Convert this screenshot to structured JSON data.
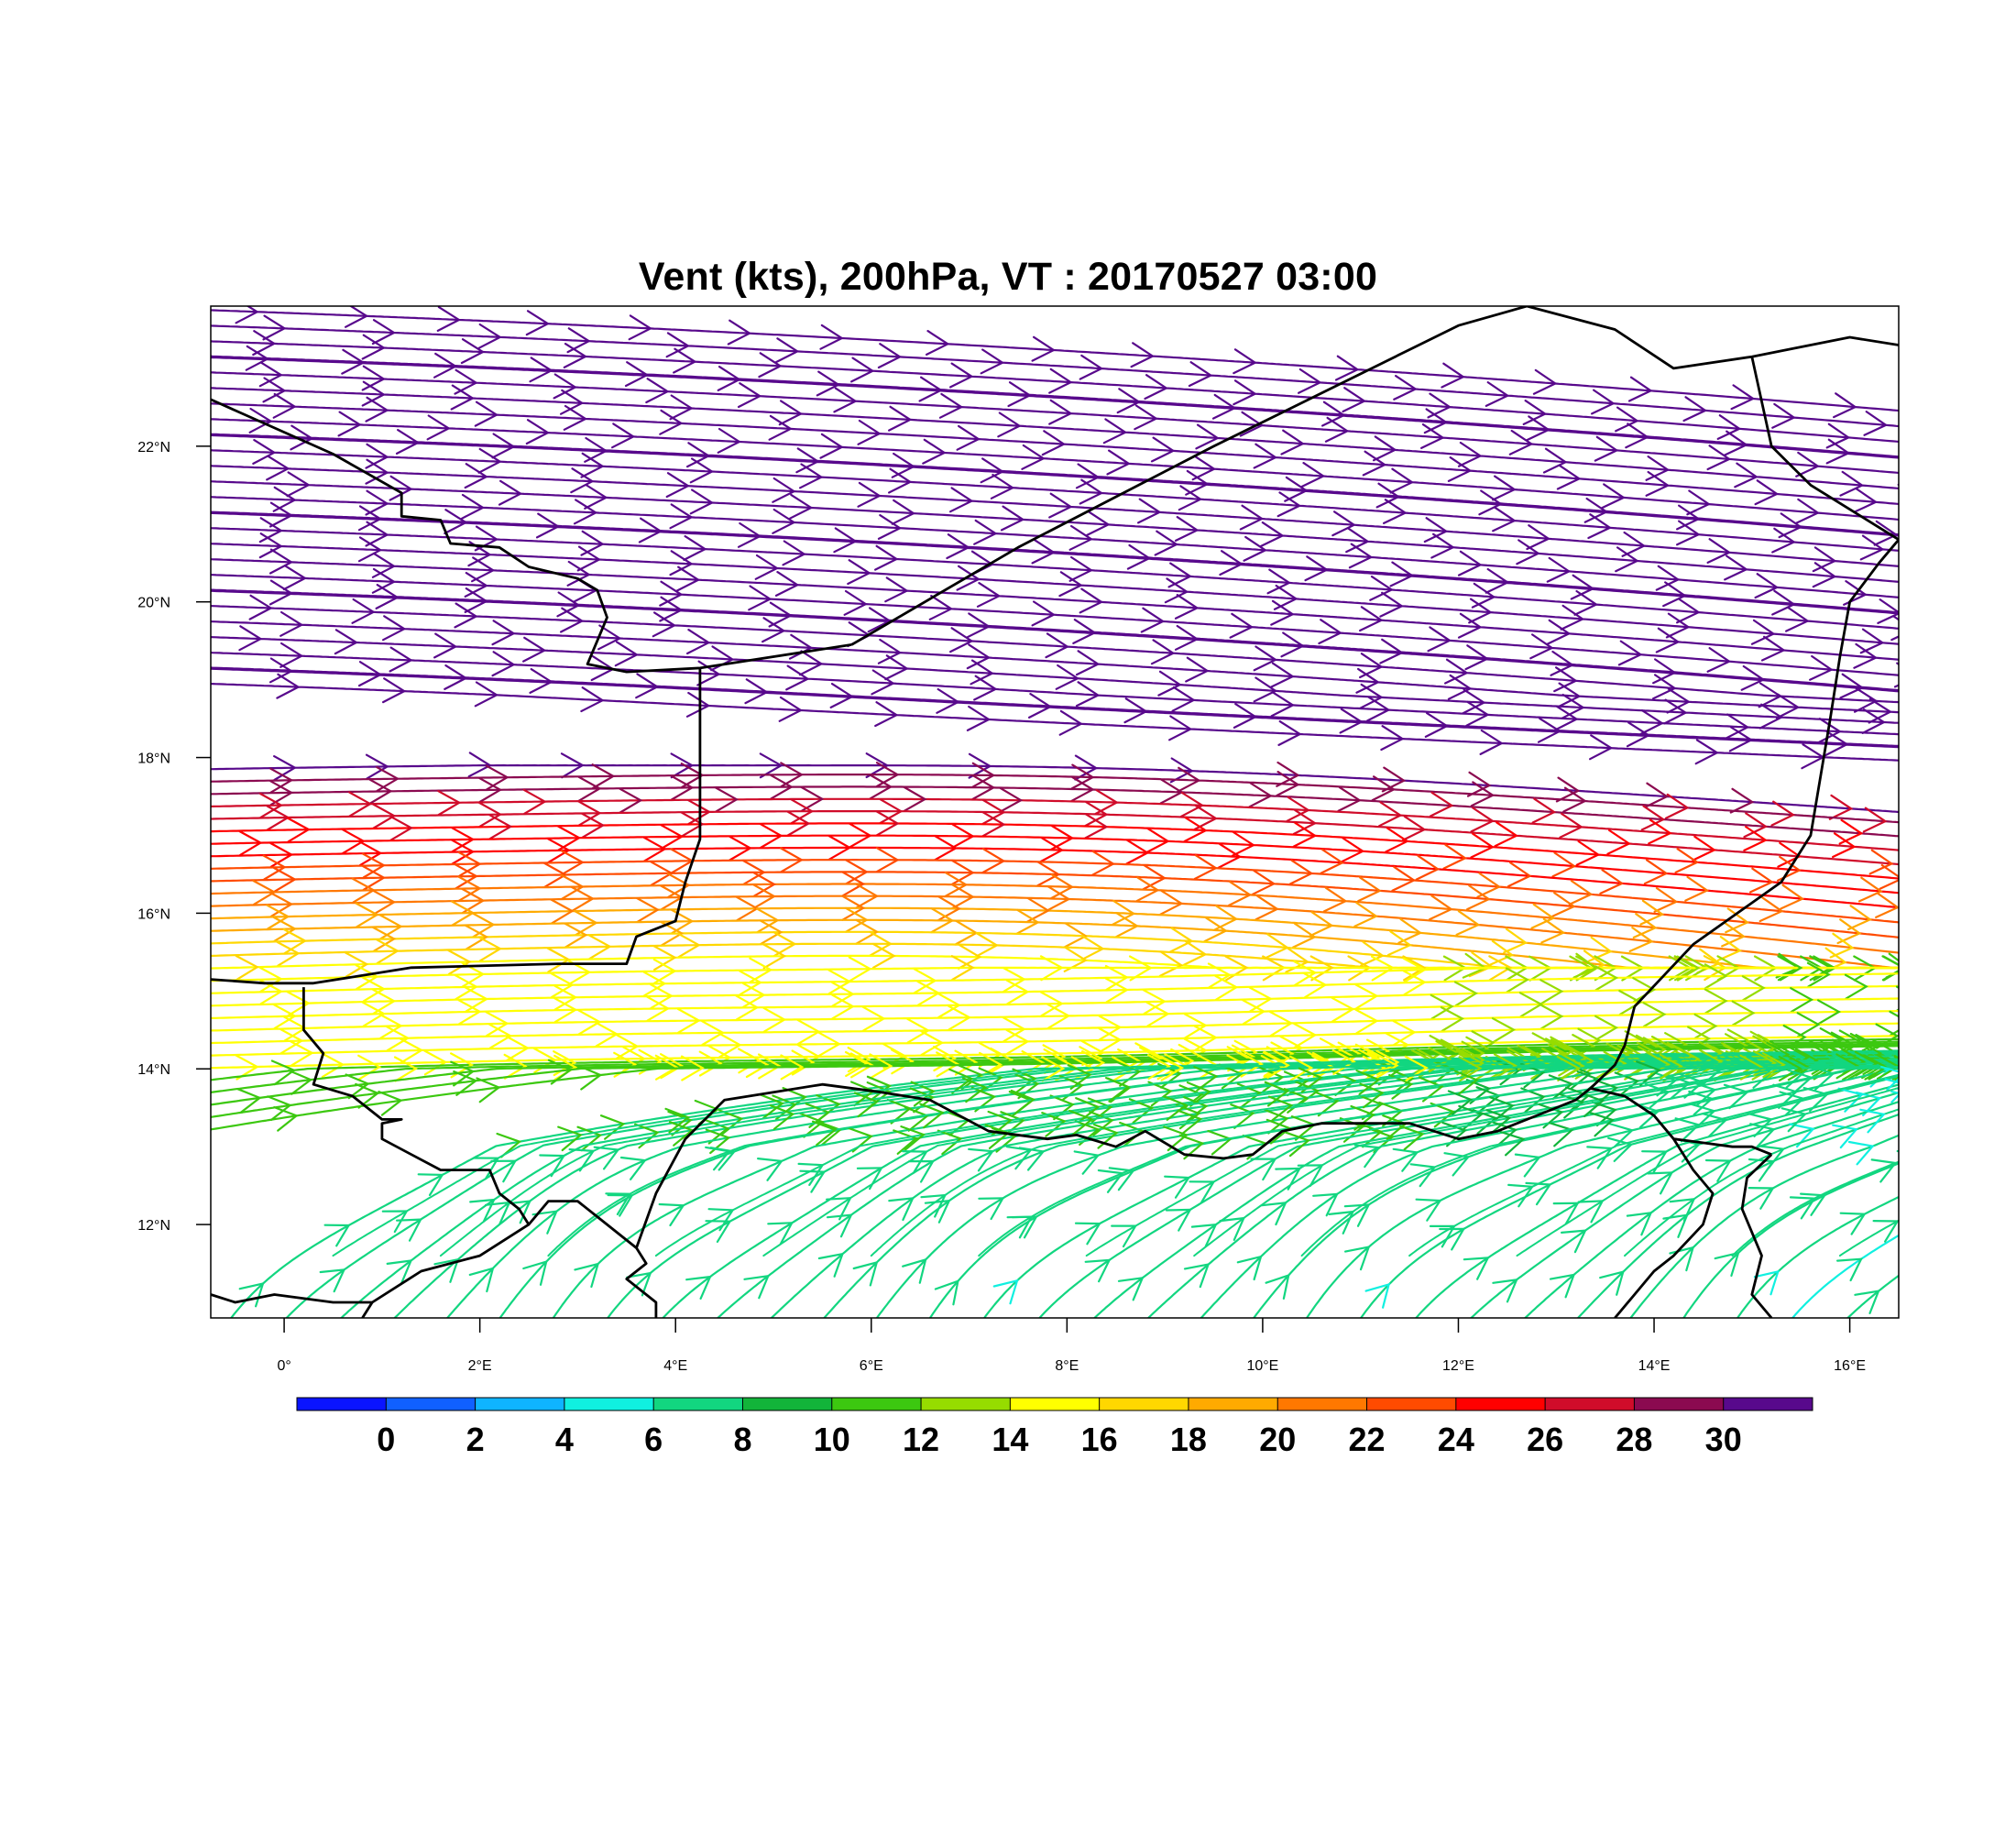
{
  "title": "Vent (kts), 200hPa, VT : 20170527  03:00",
  "map": {
    "projection": "cylindrical-equidistant",
    "lon_range": [
      -0.75,
      16.5
    ],
    "lat_range": [
      10.8,
      23.8
    ],
    "field": "streamlines colored by wind speed (kts)",
    "lon_ticks": [
      {
        "value": 0,
        "label": "0°"
      },
      {
        "value": 2,
        "label": "2°E"
      },
      {
        "value": 4,
        "label": "4°E"
      },
      {
        "value": 6,
        "label": "6°E"
      },
      {
        "value": 8,
        "label": "8°E"
      },
      {
        "value": 10,
        "label": "10°E"
      },
      {
        "value": 12,
        "label": "12°E"
      },
      {
        "value": 14,
        "label": "14°E"
      },
      {
        "value": 16,
        "label": "16°E"
      }
    ],
    "lat_ticks": [
      {
        "value": 12,
        "label": "12°N"
      },
      {
        "value": 14,
        "label": "14°N"
      },
      {
        "value": 16,
        "label": "16°N"
      },
      {
        "value": 18,
        "label": "18°N"
      },
      {
        "value": 20,
        "label": "20°N"
      },
      {
        "value": 22,
        "label": "22°N"
      }
    ],
    "boundaries": [
      [
        [
          -0.75,
          22.6
        ],
        [
          0.5,
          21.9
        ],
        [
          1.2,
          21.4
        ],
        [
          1.2,
          21.1
        ],
        [
          1.6,
          21.05
        ],
        [
          1.7,
          20.75
        ],
        [
          2.2,
          20.7
        ],
        [
          2.5,
          20.45
        ],
        [
          3.0,
          20.3
        ],
        [
          3.2,
          20.15
        ],
        [
          3.3,
          19.8
        ],
        [
          3.2,
          19.5
        ],
        [
          3.1,
          19.2
        ],
        [
          3.5,
          19.1
        ],
        [
          4.25,
          19.15
        ],
        [
          5.8,
          19.45
        ]
      ],
      [
        [
          5.8,
          19.45
        ],
        [
          7.5,
          20.7
        ],
        [
          9.5,
          22.0
        ],
        [
          12.0,
          23.55
        ],
        [
          12.7,
          23.8
        ]
      ],
      [
        [
          4.25,
          19.15
        ],
        [
          4.25,
          16.95
        ],
        [
          4.1,
          16.4
        ],
        [
          4.0,
          15.9
        ],
        [
          3.6,
          15.7
        ],
        [
          3.5,
          15.35
        ],
        [
          2.8,
          15.35
        ],
        [
          1.3,
          15.3
        ],
        [
          0.3,
          15.1
        ],
        [
          -0.2,
          15.1
        ],
        [
          -0.75,
          15.15
        ]
      ],
      [
        [
          0.2,
          15.05
        ],
        [
          0.2,
          14.5
        ],
        [
          0.4,
          14.2
        ],
        [
          0.3,
          13.8
        ],
        [
          0.7,
          13.65
        ],
        [
          1.0,
          13.35
        ],
        [
          1.2,
          13.35
        ],
        [
          1.0,
          13.3
        ],
        [
          1.0,
          13.1
        ],
        [
          1.3,
          12.9
        ],
        [
          1.6,
          12.7
        ],
        [
          2.1,
          12.7
        ],
        [
          2.2,
          12.4
        ],
        [
          2.4,
          12.2
        ],
        [
          2.5,
          12.0
        ],
        [
          2.7,
          12.3
        ],
        [
          3.0,
          12.3
        ],
        [
          3.3,
          12.0
        ],
        [
          3.6,
          11.7
        ],
        [
          3.7,
          11.5
        ],
        [
          3.5,
          11.3
        ],
        [
          3.8,
          11.0
        ],
        [
          3.8,
          10.8
        ]
      ],
      [
        [
          2.5,
          12.0
        ],
        [
          2.0,
          11.6
        ],
        [
          1.4,
          11.4
        ],
        [
          0.9,
          11.0
        ],
        [
          0.5,
          11.0
        ],
        [
          -0.1,
          11.1
        ],
        [
          -0.5,
          11.0
        ],
        [
          -0.75,
          11.1
        ]
      ],
      [
        [
          0.9,
          11.0
        ],
        [
          0.8,
          10.8
        ]
      ],
      [
        [
          3.6,
          11.7
        ],
        [
          3.8,
          12.4
        ],
        [
          4.1,
          13.1
        ],
        [
          4.5,
          13.6
        ],
        [
          5.0,
          13.7
        ],
        [
          5.5,
          13.8
        ],
        [
          6.1,
          13.7
        ],
        [
          6.6,
          13.6
        ],
        [
          7.2,
          13.2
        ],
        [
          7.8,
          13.1
        ],
        [
          8.1,
          13.15
        ],
        [
          8.5,
          13.0
        ],
        [
          8.8,
          13.2
        ],
        [
          9.2,
          12.9
        ],
        [
          9.6,
          12.85
        ],
        [
          9.9,
          12.9
        ],
        [
          10.2,
          13.2
        ],
        [
          10.6,
          13.3
        ],
        [
          11.0,
          13.3
        ],
        [
          11.5,
          13.3
        ],
        [
          12.0,
          13.1
        ],
        [
          12.4,
          13.2
        ],
        [
          12.9,
          13.45
        ],
        [
          13.2,
          13.6
        ],
        [
          13.35,
          13.75
        ],
        [
          13.6,
          14.05
        ],
        [
          13.7,
          14.3
        ],
        [
          13.8,
          14.8
        ]
      ],
      [
        [
          13.8,
          14.8
        ],
        [
          14.4,
          15.6
        ],
        [
          15.3,
          16.4
        ],
        [
          15.6,
          17.0
        ],
        [
          15.8,
          18.5
        ],
        [
          15.9,
          19.3
        ],
        [
          16.0,
          20.0
        ],
        [
          16.3,
          20.5
        ],
        [
          16.5,
          20.8
        ]
      ],
      [
        [
          13.35,
          13.75
        ],
        [
          13.7,
          13.65
        ],
        [
          14.0,
          13.4
        ],
        [
          14.2,
          13.1
        ],
        [
          14.5,
          13.05
        ],
        [
          14.8,
          13.0
        ],
        [
          15.0,
          13.0
        ],
        [
          15.2,
          12.9
        ]
      ],
      [
        [
          14.2,
          13.1
        ],
        [
          14.4,
          12.7
        ],
        [
          14.6,
          12.4
        ],
        [
          14.5,
          12.0
        ],
        [
          14.2,
          11.6
        ],
        [
          14.0,
          11.4
        ],
        [
          13.8,
          11.1
        ],
        [
          13.6,
          10.8
        ]
      ],
      [
        [
          15.2,
          12.9
        ],
        [
          14.95,
          12.6
        ],
        [
          14.9,
          12.2
        ],
        [
          15.1,
          11.6
        ],
        [
          15.0,
          11.1
        ],
        [
          15.2,
          10.8
        ]
      ],
      [
        [
          12.7,
          23.8
        ],
        [
          13.6,
          23.5
        ],
        [
          14.2,
          23.0
        ],
        [
          15.0,
          23.15
        ],
        [
          16.0,
          23.4
        ],
        [
          16.5,
          23.3
        ]
      ],
      [
        [
          15.0,
          23.15
        ],
        [
          15.2,
          22.0
        ],
        [
          15.6,
          21.5
        ],
        [
          16.5,
          20.8
        ]
      ]
    ]
  },
  "colorbar": {
    "colors": [
      "#0a14ff",
      "#1060ff",
      "#0fb4ff",
      "#10f0e0",
      "#12d680",
      "#12b43a",
      "#3cc810",
      "#96dc00",
      "#ffff00",
      "#ffd700",
      "#ffaa00",
      "#ff7800",
      "#ff4b00",
      "#ff0000",
      "#d00c2a",
      "#8b0a50",
      "#58098c"
    ],
    "labels": [
      "0",
      "2",
      "4",
      "6",
      "8",
      "10",
      "12",
      "14",
      "16",
      "18",
      "20",
      "22",
      "24",
      "26",
      "28",
      "30"
    ]
  },
  "chart_data": {
    "type": "streamlines",
    "variable": "wind speed",
    "units": "kts",
    "level": "200hPa",
    "valid_time": "20170527 03:00",
    "speed_levels": [
      0,
      2,
      4,
      6,
      8,
      10,
      12,
      14,
      16,
      18,
      20,
      22,
      24,
      26,
      28,
      30
    ],
    "streamline_bands": [
      {
        "lat_start": [
          18.8,
          23.8
        ],
        "direction": "eastward, drifting south-east",
        "speed_kts": ">30"
      },
      {
        "lat_start": [
          16.4,
          17.8
        ],
        "direction": "eastward",
        "speed_kts": "24-30"
      },
      {
        "lat_start": [
          15.4,
          16.4
        ],
        "direction": "eastward",
        "speed_kts": "18-24"
      },
      {
        "lat_start": [
          13.8,
          15.4
        ],
        "direction": "eastward",
        "speed_kts": "14-18"
      },
      {
        "lat_start": [
          13.0,
          14.4
        ],
        "direction": "east-northeast",
        "speed_kts": "8-14"
      },
      {
        "lat_start": [
          10.8,
          13.0
        ],
        "direction": "curving from south-west to north-east",
        "speed_kts": "0-8"
      }
    ]
  }
}
